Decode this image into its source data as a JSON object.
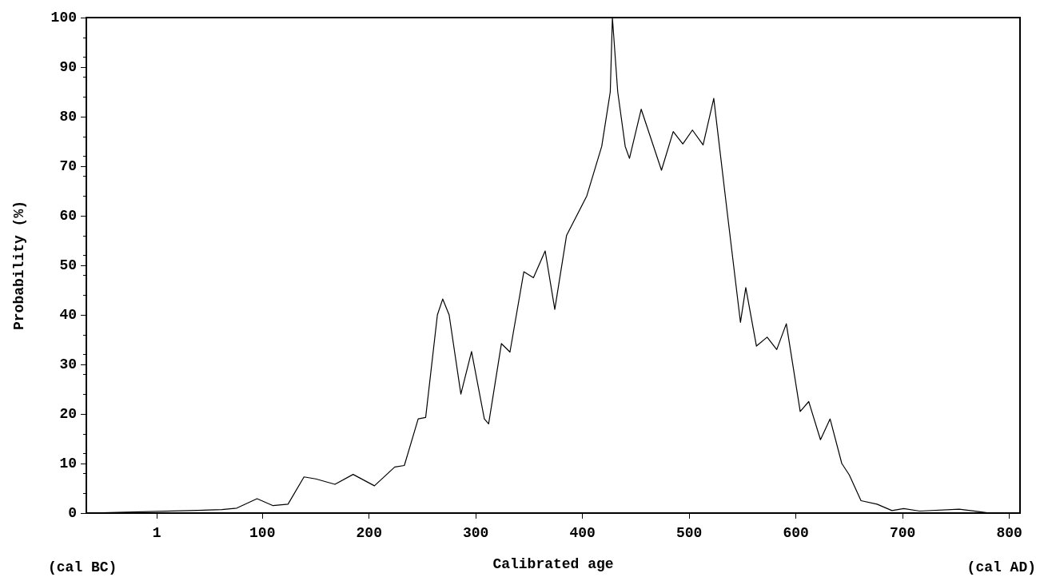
{
  "chart_data": {
    "type": "line",
    "xlabel": "Calibrated age",
    "ylabel": "Probability (%)",
    "annotations": [
      "(cal BC)",
      "(cal AD)"
    ],
    "x": [
      -65,
      32,
      62,
      76,
      95,
      110,
      124,
      139,
      150,
      168,
      185,
      205,
      224,
      233,
      246,
      253,
      264,
      269,
      275,
      286,
      296,
      308,
      312,
      324,
      332,
      345,
      354,
      365,
      374,
      385,
      404,
      418,
      426,
      428,
      433,
      440,
      444,
      455,
      474,
      485,
      494,
      503,
      513,
      523,
      536,
      548,
      553,
      563,
      573,
      582,
      591,
      604,
      612,
      623,
      632,
      643,
      650,
      661,
      676,
      690,
      701,
      716,
      753,
      771,
      782,
      810
    ],
    "series": [
      {
        "color": "#000000",
        "values": [
          0,
          0.5,
          0.7,
          1,
          2.9,
          1.5,
          1.8,
          7.3,
          6.9,
          5.8,
          7.8,
          5.5,
          9.3,
          9.6,
          19,
          19.3,
          40,
          43.2,
          40,
          24,
          32.6,
          19,
          18,
          34.2,
          32.5,
          48.7,
          47.5,
          52.9,
          41.1,
          56,
          64,
          74,
          85,
          100,
          85,
          74,
          71.6,
          81.5,
          69.2,
          77,
          74.5,
          77.3,
          74.3,
          83.7,
          60,
          38.5,
          45.5,
          33.7,
          35.5,
          33,
          38.2,
          20.5,
          22.5,
          14.8,
          19,
          10,
          7.7,
          2.5,
          1.8,
          0.5,
          0.9,
          0.4,
          0.8,
          0.3,
          0,
          0
        ]
      }
    ],
    "xlim": [
      -65,
      810
    ],
    "xticks": [
      1,
      100,
      200,
      300,
      400,
      500,
      600,
      700,
      800
    ],
    "ylim": [
      0,
      100
    ],
    "yticks": [
      0,
      10,
      20,
      30,
      40,
      50,
      60,
      70,
      80,
      90,
      100
    ],
    "grid": false,
    "marker": "none",
    "line_style": "solid"
  }
}
